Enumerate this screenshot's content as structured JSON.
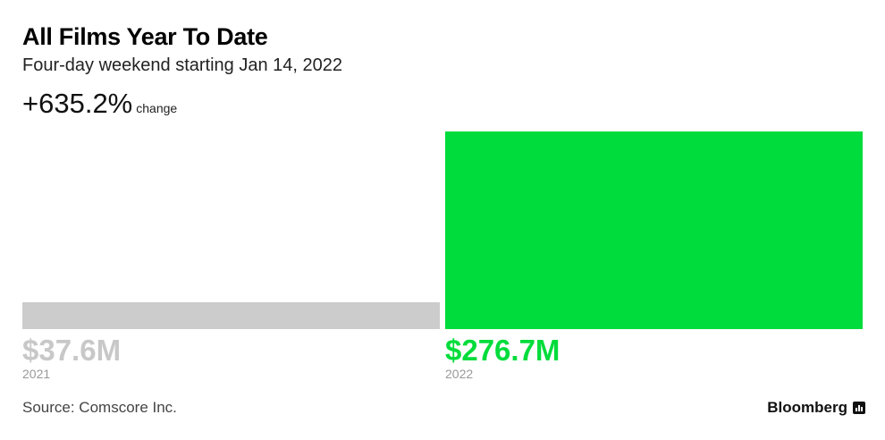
{
  "header": {
    "title": "All Films Year To Date",
    "subtitle": "Four-day weekend starting Jan 14, 2022",
    "change_value": "+635.2%",
    "change_label": "change"
  },
  "chart_data": {
    "type": "bar",
    "title": "All Films Year To Date",
    "subtitle": "Four-day weekend starting Jan 14, 2022",
    "categories": [
      "2021",
      "2022"
    ],
    "values": [
      37.6,
      276.7
    ],
    "value_labels": [
      "$37.6M",
      "$276.7M"
    ],
    "unit": "$M",
    "colors": [
      "#cccccc",
      "#00dc3b"
    ],
    "label_colors": [
      "#c8c8c8",
      "#00dc3b"
    ],
    "ylim": [
      0,
      276.7
    ],
    "grid": false,
    "legend": "none"
  },
  "footer": {
    "source": "Source: Comscore Inc.",
    "brand": "Bloomberg"
  }
}
